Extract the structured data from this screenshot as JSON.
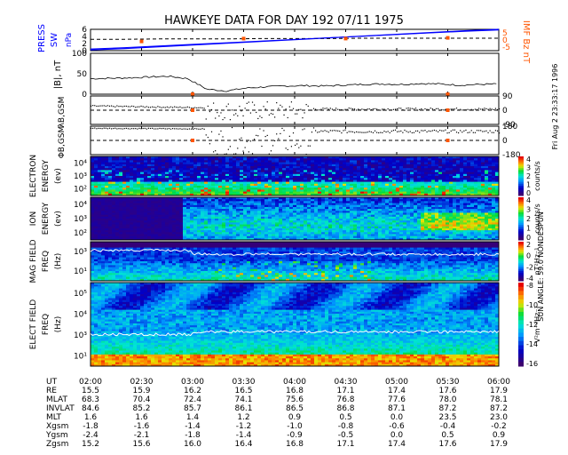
{
  "title": "HAWKEYE DATA FOR DAY 192 07/11 1975",
  "side_note": "Fri Aug  2 23:33:17 1996",
  "sun_angle": "SUN ANGLE:  59.0 NONDESPUN",
  "colors": {
    "press": "#0000ff",
    "imf": "#ff5500",
    "trace": "#000000",
    "dashed": "#000000"
  },
  "chart_data": [
    {
      "type": "line",
      "id": "press",
      "ylabel_left": "PRESS",
      "ylabel_left2": "SW",
      "ylabel_left3": "nPa",
      "ylabel_right": "IMF Bz nT",
      "yticks_left": [
        "0",
        "2",
        "4",
        "6"
      ],
      "yticks_right": [
        "5",
        "0",
        "-5"
      ],
      "ylim": [
        0,
        6
      ],
      "series": [
        {
          "values": [
            0.2,
            0.6,
            1.1,
            1.6,
            2.1,
            2.6,
            3.1,
            3.6,
            4.1,
            4.6,
            5.1,
            5.6,
            6.0
          ]
        },
        {
          "values": [
            3.2,
            3.2,
            3.3,
            3.3,
            3.3,
            3.4,
            3.4,
            3.4,
            3.5,
            3.5,
            3.5,
            3.5,
            3.5
          ]
        }
      ],
      "markers": [
        {
          "x": "02:30",
          "y": 2.6
        },
        {
          "x": "03:30",
          "y": 3.4
        },
        {
          "x": "04:30",
          "y": 3.4
        },
        {
          "x": "05:30",
          "y": 3.6
        }
      ]
    },
    {
      "type": "line",
      "id": "bmag",
      "ylabel": "|B|, nT",
      "yticks": [
        "0",
        "50",
        "100"
      ],
      "ylim": [
        0,
        100
      ],
      "series": [
        {
          "values": [
            38,
            39,
            40,
            42,
            44,
            38,
            12,
            8,
            15,
            18,
            20,
            21,
            20,
            22,
            24,
            25,
            24,
            26,
            25,
            22,
            24,
            25
          ]
        }
      ]
    },
    {
      "type": "scatter",
      "id": "lambda",
      "ylabel": "λB,GSM",
      "yticks": [
        "90",
        "0",
        "-90"
      ],
      "ylim": [
        -90,
        90
      ]
    },
    {
      "type": "scatter",
      "id": "phi",
      "ylabel": "ΦB,GSM",
      "yticks": [
        "180",
        "0",
        "-180"
      ],
      "ylim": [
        -180,
        180
      ]
    },
    {
      "type": "heatmap",
      "id": "electron",
      "ylabel": [
        "ELECTRON",
        "ENERGY",
        "(ev)"
      ],
      "yticks": [
        "10⁴",
        "10³",
        "10²"
      ],
      "cbar_ticks": [
        "4",
        "3",
        "2",
        "1",
        "0"
      ],
      "cbar_label": "counts/s"
    },
    {
      "type": "heatmap",
      "id": "ion",
      "ylabel": [
        "ION",
        "ENERGY",
        "(ev)"
      ],
      "yticks": [
        "10⁴",
        "10³",
        "10²"
      ],
      "cbar_ticks": [
        "4",
        "3",
        "2",
        "1",
        "0"
      ],
      "cbar_label": "counts/s"
    },
    {
      "type": "heatmap",
      "id": "mag",
      "ylabel": [
        "MAG FIELD",
        "FREQ",
        "(Hz)"
      ],
      "yticks": [
        "10³",
        "10¹"
      ],
      "cbar_ticks": [
        "2",
        "0",
        "-2",
        "-4"
      ],
      "cbar_label": "nT²Hz⁻¹"
    },
    {
      "type": "heatmap",
      "id": "efield",
      "ylabel": [
        "ELECT FIELD",
        "FREQ",
        "(Hz)"
      ],
      "yticks": [
        "10⁵",
        "10⁴",
        "10³",
        "10¹"
      ],
      "cbar_ticks": [
        "-8",
        "-10",
        "-12",
        "-14",
        "-16"
      ],
      "cbar_label": "V²m⁻²Hz⁻¹"
    }
  ],
  "table": {
    "rows": [
      {
        "label": "UT",
        "values": [
          "02:00",
          "02:30",
          "03:00",
          "03:30",
          "04:00",
          "04:30",
          "05:00",
          "05:30",
          "06:00"
        ]
      },
      {
        "label": "RE",
        "values": [
          "15.5",
          "15.9",
          "16.2",
          "16.5",
          "16.8",
          "17.1",
          "17.4",
          "17.6",
          "17.9"
        ]
      },
      {
        "label": "MLAT",
        "values": [
          "68.3",
          "70.4",
          "72.4",
          "74.1",
          "75.6",
          "76.8",
          "77.6",
          "78.0",
          "78.1"
        ]
      },
      {
        "label": "INVLAT",
        "values": [
          "84.6",
          "85.2",
          "85.7",
          "86.1",
          "86.5",
          "86.8",
          "87.1",
          "87.2",
          "87.2"
        ]
      },
      {
        "label": "MLT",
        "values": [
          "1.6",
          "1.6",
          "1.4",
          "1.2",
          "0.9",
          "0.5",
          "0.0",
          "23.5",
          "23.0"
        ]
      },
      {
        "label": "Xgsm",
        "values": [
          "-1.8",
          "-1.6",
          "-1.4",
          "-1.2",
          "-1.0",
          "-0.8",
          "-0.6",
          "-0.4",
          "-0.2"
        ]
      },
      {
        "label": "Ygsm",
        "values": [
          "-2.4",
          "-2.1",
          "-1.8",
          "-1.4",
          "-0.9",
          "-0.5",
          "0.0",
          "0.5",
          "0.9"
        ]
      },
      {
        "label": "Zgsm",
        "values": [
          "15.2",
          "15.6",
          "16.0",
          "16.4",
          "16.8",
          "17.1",
          "17.4",
          "17.6",
          "17.9"
        ]
      }
    ]
  }
}
